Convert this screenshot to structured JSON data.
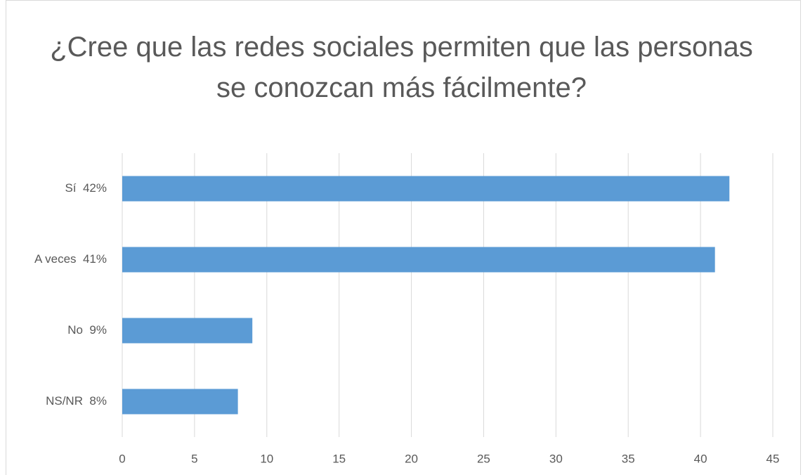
{
  "chart_data": {
    "type": "bar",
    "orientation": "horizontal",
    "title": "¿Cree que las redes sociales permiten que las personas se conozcan más fácilmente?",
    "categories": [
      "Sí  42%",
      "A veces  41%",
      "No  9%",
      "NS/NR  8%"
    ],
    "values": [
      42,
      41,
      9,
      8
    ],
    "color": "#5b9bd5",
    "xlim": [
      0,
      45
    ],
    "xticks": [
      0,
      5,
      10,
      15,
      20,
      25,
      30,
      35,
      40,
      45
    ],
    "grid": true
  }
}
